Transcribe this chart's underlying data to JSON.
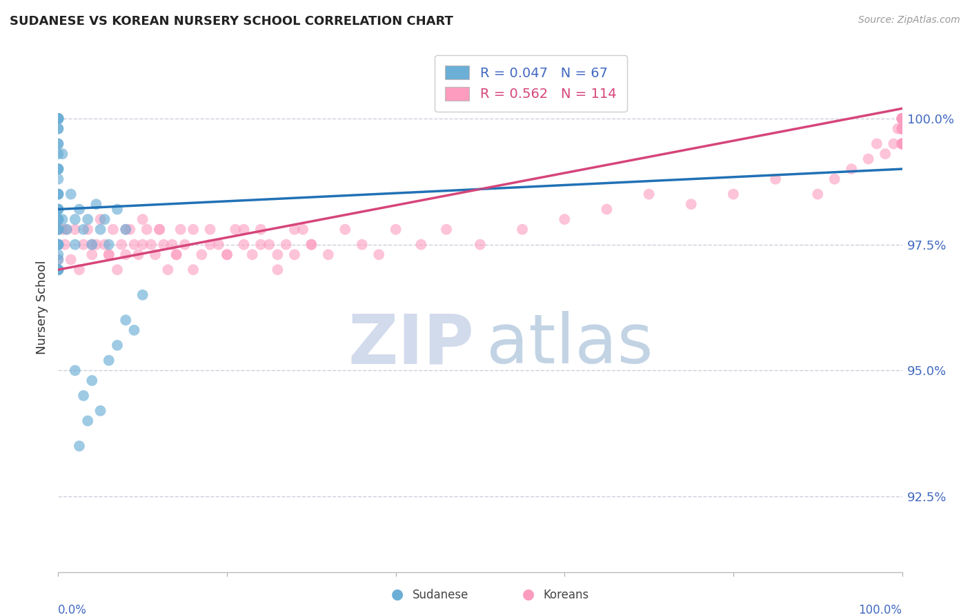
{
  "title": "SUDANESE VS KOREAN NURSERY SCHOOL CORRELATION CHART",
  "source": "Source: ZipAtlas.com",
  "ylabel": "Nursery School",
  "ytick_values": [
    92.5,
    95.0,
    97.5,
    100.0
  ],
  "color_blue": "#6baed6",
  "color_pink": "#fc9cbf",
  "color_blue_line": "#2171b5",
  "color_pink_line": "#d6457a",
  "color_axis_labels": "#4169c0",
  "color_grid": "#c8c8d8",
  "xlim": [
    0,
    100
  ],
  "ylim": [
    91.0,
    101.5
  ],
  "background_color": "#ffffff",
  "R_sudanese": 0.047,
  "N_sudanese": 67,
  "R_korean": 0.562,
  "N_korean": 114,
  "sudanese_x": [
    0.0,
    0.0,
    0.0,
    0.0,
    0.0,
    0.0,
    0.0,
    0.0,
    0.0,
    0.0,
    0.0,
    0.0,
    0.0,
    0.0,
    0.0,
    0.0,
    0.0,
    0.0,
    0.0,
    0.0,
    0.0,
    0.0,
    0.0,
    0.0,
    0.0,
    0.0,
    0.0,
    0.0,
    0.0,
    0.0,
    0.0,
    0.0,
    0.0,
    0.0,
    0.0,
    0.0,
    0.0,
    0.0,
    0.0,
    0.0,
    0.5,
    0.5,
    1.0,
    1.5,
    2.0,
    2.0,
    2.5,
    3.0,
    3.5,
    4.0,
    4.5,
    5.0,
    5.5,
    6.0,
    7.0,
    8.0,
    2.0,
    3.0,
    4.0,
    5.0,
    6.0,
    7.0,
    8.0,
    9.0,
    10.0,
    2.5,
    3.5
  ],
  "sudanese_y": [
    100.0,
    100.0,
    100.0,
    100.0,
    100.0,
    100.0,
    100.0,
    100.0,
    99.8,
    99.8,
    99.5,
    99.5,
    99.3,
    99.0,
    98.8,
    98.5,
    98.2,
    98.0,
    97.8,
    97.5,
    97.5,
    97.3,
    97.2,
    97.0,
    97.0,
    97.0,
    97.0,
    97.0,
    97.5,
    97.5,
    98.0,
    98.0,
    98.5,
    98.5,
    99.0,
    99.0,
    97.8,
    97.8,
    98.2,
    98.2,
    99.3,
    98.0,
    97.8,
    98.5,
    98.0,
    97.5,
    98.2,
    97.8,
    98.0,
    97.5,
    98.3,
    97.8,
    98.0,
    97.5,
    98.2,
    97.8,
    95.0,
    94.5,
    94.8,
    94.2,
    95.2,
    95.5,
    96.0,
    95.8,
    96.5,
    93.5,
    94.0
  ],
  "korean_x": [
    0.0,
    0.0,
    0.0,
    0.0,
    0.5,
    0.8,
    1.0,
    1.5,
    2.0,
    2.5,
    3.0,
    3.5,
    4.0,
    4.5,
    5.0,
    5.5,
    6.0,
    6.5,
    7.0,
    7.5,
    8.0,
    8.5,
    9.0,
    9.5,
    10.0,
    10.5,
    11.0,
    11.5,
    12.0,
    12.5,
    13.0,
    13.5,
    14.0,
    14.5,
    15.0,
    16.0,
    17.0,
    18.0,
    19.0,
    20.0,
    21.0,
    22.0,
    23.0,
    24.0,
    25.0,
    26.0,
    27.0,
    28.0,
    29.0,
    30.0,
    32.0,
    34.0,
    36.0,
    38.0,
    40.0,
    43.0,
    46.0,
    50.0,
    55.0,
    60.0,
    65.0,
    70.0,
    75.0,
    80.0,
    85.0,
    90.0,
    92.0,
    94.0,
    96.0,
    97.0,
    98.0,
    99.0,
    99.5,
    100.0,
    100.0,
    100.0,
    100.0,
    100.0,
    100.0,
    100.0,
    100.0,
    100.0,
    100.0,
    100.0,
    100.0,
    100.0,
    100.0,
    100.0,
    100.0,
    100.0,
    100.0,
    100.0,
    100.0,
    100.0,
    100.0,
    100.0,
    100.0,
    100.0,
    100.0,
    100.0,
    4.0,
    6.0,
    8.0,
    10.0,
    12.0,
    14.0,
    16.0,
    18.0,
    20.0,
    22.0,
    24.0,
    26.0,
    28.0,
    30.0
  ],
  "korean_y": [
    97.5,
    97.2,
    97.0,
    97.8,
    97.8,
    97.5,
    97.8,
    97.2,
    97.8,
    97.0,
    97.5,
    97.8,
    97.3,
    97.5,
    98.0,
    97.5,
    97.3,
    97.8,
    97.0,
    97.5,
    97.3,
    97.8,
    97.5,
    97.3,
    98.0,
    97.8,
    97.5,
    97.3,
    97.8,
    97.5,
    97.0,
    97.5,
    97.3,
    97.8,
    97.5,
    97.0,
    97.3,
    97.8,
    97.5,
    97.3,
    97.8,
    97.5,
    97.3,
    97.8,
    97.5,
    97.0,
    97.5,
    97.3,
    97.8,
    97.5,
    97.3,
    97.8,
    97.5,
    97.3,
    97.8,
    97.5,
    97.8,
    97.5,
    97.8,
    98.0,
    98.2,
    98.5,
    98.3,
    98.5,
    98.8,
    98.5,
    98.8,
    99.0,
    99.2,
    99.5,
    99.3,
    99.5,
    99.8,
    100.0,
    99.8,
    100.0,
    99.5,
    100.0,
    99.8,
    100.0,
    99.5,
    100.0,
    100.0,
    99.8,
    100.0,
    99.5,
    100.0,
    100.0,
    99.8,
    100.0,
    99.5,
    100.0,
    100.0,
    99.8,
    100.0,
    99.5,
    100.0,
    100.0,
    99.8,
    100.0,
    97.5,
    97.3,
    97.8,
    97.5,
    97.8,
    97.3,
    97.8,
    97.5,
    97.3,
    97.8,
    97.5,
    97.3,
    97.8,
    97.5
  ]
}
